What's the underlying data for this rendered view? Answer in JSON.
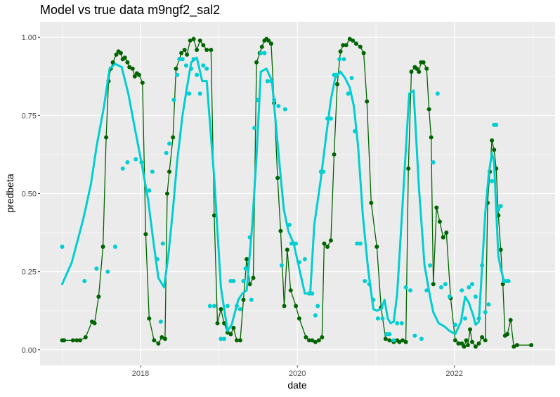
{
  "chart_data": {
    "type": "line",
    "title": "Model vs true data m9ngf2_sal2",
    "xlabel": "date",
    "ylabel": "predbeta",
    "x_ticks": [
      "2018",
      "2020",
      "2022"
    ],
    "y_ticks": [
      "0.00",
      "0.25",
      "0.50",
      "0.75",
      "1.00"
    ],
    "xlim": [
      "2016-09-20",
      "2023-04-15"
    ],
    "ylim": [
      -0.05,
      1.05
    ],
    "grid": true,
    "legend": "none",
    "colors": {
      "panel_background": "#ebebeb",
      "grid": "#ffffff",
      "true_series": "#006400",
      "model_series": "#00ced1"
    },
    "series": [
      {
        "role": "true",
        "style": "line+points",
        "x": [
          "2017-01-01",
          "2017-01-10",
          "2017-02-20",
          "2017-03-10",
          "2017-03-25",
          "2017-04-20",
          "2017-05-20",
          "2017-06-01",
          "2017-06-20",
          "2017-07-10",
          "2017-07-25",
          "2017-08-05",
          "2017-08-15",
          "2017-08-25",
          "2017-09-10",
          "2017-09-20",
          "2017-10-01",
          "2017-10-10",
          "2017-10-20",
          "2017-11-01",
          "2017-11-10",
          "2017-11-25",
          "2017-12-05",
          "2017-12-15",
          "2017-12-25",
          "2018-01-10",
          "2018-01-25",
          "2018-02-10",
          "2018-03-05",
          "2018-03-25",
          "2018-04-10",
          "2018-04-25",
          "2018-05-05",
          "2018-05-15",
          "2018-06-01",
          "2018-06-15",
          "2018-07-01",
          "2018-07-10",
          "2018-07-25",
          "2018-08-05",
          "2018-08-20",
          "2018-09-05",
          "2018-09-20",
          "2018-10-05",
          "2018-10-20",
          "2018-11-05",
          "2018-11-25",
          "2018-12-10",
          "2018-12-25",
          "2019-01-10",
          "2019-01-25",
          "2019-02-10",
          "2019-02-25",
          "2019-03-10",
          "2019-03-25",
          "2019-04-10",
          "2019-04-25",
          "2019-05-10",
          "2019-05-25",
          "2019-06-10",
          "2019-06-25",
          "2019-07-10",
          "2019-07-20",
          "2019-08-01",
          "2019-08-10",
          "2019-08-20",
          "2019-09-01",
          "2019-09-15",
          "2019-10-01",
          "2019-10-15",
          "2019-11-01",
          "2019-11-15",
          "2019-12-01",
          "2019-12-25",
          "2020-01-10",
          "2020-02-10",
          "2020-02-25",
          "2020-03-10",
          "2020-03-25",
          "2020-04-10",
          "2020-04-25",
          "2020-05-05",
          "2020-05-20",
          "2020-06-05",
          "2020-06-20",
          "2020-07-05",
          "2020-07-20",
          "2020-08-01",
          "2020-08-15",
          "2020-09-01",
          "2020-09-15",
          "2020-10-01",
          "2020-10-20",
          "2020-11-05",
          "2020-11-20",
          "2020-12-10",
          "2021-01-05",
          "2021-01-25",
          "2021-02-15",
          "2021-03-05",
          "2021-03-25",
          "2021-04-10",
          "2021-04-20",
          "2021-05-05",
          "2021-05-20",
          "2021-06-01",
          "2021-06-15",
          "2021-07-01",
          "2021-07-10",
          "2021-07-20",
          "2021-07-30",
          "2021-08-10",
          "2021-08-25",
          "2021-09-05",
          "2021-09-15",
          "2021-09-25",
          "2021-10-10",
          "2021-10-25",
          "2021-11-10",
          "2021-11-25",
          "2021-12-15",
          "2022-01-05",
          "2022-01-20",
          "2022-02-05",
          "2022-02-15",
          "2022-02-25",
          "2022-03-05",
          "2022-03-15",
          "2022-03-25",
          "2022-04-10",
          "2022-04-25",
          "2022-05-10",
          "2022-05-25",
          "2022-06-05",
          "2022-06-15",
          "2022-06-25",
          "2022-07-05",
          "2022-07-15",
          "2022-07-25",
          "2022-08-05",
          "2022-08-15",
          "2022-08-25",
          "2022-09-05",
          "2022-09-20",
          "2022-10-05",
          "2022-10-20",
          "2022-12-25"
        ],
        "y": [
          0.03,
          0.03,
          0.03,
          0.03,
          0.03,
          0.04,
          0.09,
          0.085,
          0.17,
          0.33,
          0.68,
          0.86,
          0.9,
          0.92,
          0.945,
          0.955,
          0.95,
          0.93,
          0.935,
          0.92,
          0.905,
          0.9,
          0.875,
          0.885,
          0.88,
          0.855,
          0.37,
          0.1,
          0.03,
          0.02,
          0.04,
          0.035,
          0.5,
          0.57,
          0.68,
          0.9,
          0.93,
          0.95,
          0.96,
          0.945,
          0.99,
          0.995,
          0.96,
          0.99,
          0.975,
          0.96,
          0.96,
          0.43,
          0.085,
          0.13,
          0.085,
          0.055,
          0.05,
          0.07,
          0.03,
          0.03,
          0.16,
          0.29,
          0.21,
          0.23,
          0.92,
          0.95,
          0.97,
          0.99,
          0.995,
          0.99,
          0.98,
          0.79,
          0.55,
          0.38,
          0.14,
          0.32,
          0.19,
          0.14,
          0.1,
          0.04,
          0.03,
          0.03,
          0.025,
          0.03,
          0.04,
          0.34,
          0.33,
          0.35,
          0.625,
          0.85,
          0.955,
          0.975,
          0.975,
          0.995,
          0.99,
          0.98,
          0.97,
          0.95,
          0.795,
          0.47,
          0.33,
          0.135,
          0.035,
          0.03,
          0.025,
          0.03,
          0.025,
          0.03,
          0.025,
          0.58,
          0.89,
          0.905,
          0.9,
          0.89,
          0.92,
          0.92,
          0.9,
          0.77,
          0.68,
          0.21,
          0.455,
          0.41,
          0.36,
          0.375,
          0.165,
          0.03,
          0.02,
          0.02,
          0.01,
          0.03,
          0.015,
          0.065,
          0.025,
          0.01,
          0.02,
          0.04,
          0.03,
          0.47,
          0.57,
          0.67,
          0.64,
          0.58,
          0.43,
          0.32,
          0.21,
          0.045,
          0.05,
          0.095,
          0.01,
          0.015,
          0.015
        ]
      },
      {
        "role": "model",
        "style": "line",
        "x": [
          "2017-01-01",
          "2017-02-15",
          "2017-03-10",
          "2017-04-10",
          "2017-05-15",
          "2017-06-10",
          "2017-07-15",
          "2017-08-10",
          "2017-09-05",
          "2017-10-05",
          "2017-11-05",
          "2017-12-05",
          "2018-01-05",
          "2018-02-05",
          "2018-03-01",
          "2018-03-25",
          "2018-04-20",
          "2018-05-10",
          "2018-06-01",
          "2018-06-20",
          "2018-07-15",
          "2018-08-05",
          "2018-08-25",
          "2018-09-20",
          "2018-10-15",
          "2018-11-05",
          "2018-12-10",
          "2019-01-10",
          "2019-02-10",
          "2019-03-01",
          "2019-04-01",
          "2019-04-20",
          "2019-05-10",
          "2019-06-05",
          "2019-06-25",
          "2019-07-15",
          "2019-08-10",
          "2019-09-05",
          "2019-10-05",
          "2019-10-30",
          "2019-11-20",
          "2019-12-15",
          "2020-01-10",
          "2020-02-05",
          "2020-03-01",
          "2020-03-20",
          "2020-04-20",
          "2020-05-15",
          "2020-06-05",
          "2020-06-25",
          "2020-07-20",
          "2020-08-10",
          "2020-09-01",
          "2020-09-20",
          "2020-10-10",
          "2020-11-01",
          "2020-11-25",
          "2020-12-20",
          "2021-01-05",
          "2021-01-25",
          "2021-02-10",
          "2021-02-25",
          "2021-03-10",
          "2021-03-25",
          "2021-04-10",
          "2021-04-25",
          "2021-05-15",
          "2021-06-05",
          "2021-06-25",
          "2021-07-20",
          "2021-08-15",
          "2021-09-10",
          "2021-09-25",
          "2021-10-20",
          "2021-11-15",
          "2021-12-10",
          "2022-01-05",
          "2022-02-01",
          "2022-02-20",
          "2022-03-10",
          "2022-03-30",
          "2022-04-10",
          "2022-04-25",
          "2022-05-15",
          "2022-05-25",
          "2022-06-10",
          "2022-06-25",
          "2022-07-05",
          "2022-07-15",
          "2022-07-25",
          "2022-08-05",
          "2022-08-20",
          "2022-09-05"
        ],
        "y": [
          0.21,
          0.28,
          0.34,
          0.42,
          0.53,
          0.65,
          0.78,
          0.9,
          0.915,
          0.905,
          0.82,
          0.71,
          0.6,
          0.48,
          0.35,
          0.23,
          0.2,
          0.3,
          0.45,
          0.6,
          0.75,
          0.84,
          0.92,
          0.935,
          0.86,
          0.86,
          0.55,
          0.2,
          0.06,
          0.08,
          0.16,
          0.18,
          0.19,
          0.4,
          0.62,
          0.89,
          0.9,
          0.86,
          0.63,
          0.45,
          0.38,
          0.34,
          0.26,
          0.18,
          0.18,
          0.4,
          0.55,
          0.69,
          0.8,
          0.87,
          0.89,
          0.87,
          0.84,
          0.78,
          0.65,
          0.43,
          0.26,
          0.13,
          0.125,
          0.13,
          0.16,
          0.1,
          0.085,
          0.09,
          0.18,
          0.35,
          0.58,
          0.82,
          0.83,
          0.52,
          0.27,
          0.17,
          0.12,
          0.085,
          0.075,
          0.06,
          0.05,
          0.09,
          0.17,
          0.15,
          0.11,
          0.08,
          0.09,
          0.32,
          0.44,
          0.56,
          0.63,
          0.6,
          0.45,
          0.3,
          0.26,
          0.22,
          0.22
        ]
      },
      {
        "role": "model",
        "style": "points",
        "x": [
          "2017-01-01",
          "2017-04-15",
          "2017-06-10",
          "2017-08-01",
          "2017-09-05",
          "2017-10-10",
          "2017-11-01",
          "2017-12-10",
          "2018-01-05",
          "2018-02-10",
          "2018-02-25",
          "2018-03-20",
          "2018-04-05",
          "2018-04-15",
          "2018-05-01",
          "2018-05-15",
          "2018-06-05",
          "2018-06-20",
          "2018-07-01",
          "2018-07-15",
          "2018-08-01",
          "2018-08-15",
          "2018-08-25",
          "2018-09-05",
          "2018-09-20",
          "2018-10-05",
          "2018-10-20",
          "2018-11-05",
          "2018-11-20",
          "2018-12-10",
          "2019-01-10",
          "2019-01-25",
          "2019-02-10",
          "2019-02-25",
          "2019-03-10",
          "2019-03-25",
          "2019-04-10",
          "2019-04-25",
          "2019-05-05",
          "2019-05-25",
          "2019-06-01",
          "2019-06-15",
          "2019-07-01",
          "2019-07-15",
          "2019-08-01",
          "2019-08-15",
          "2019-09-01",
          "2019-09-15",
          "2019-10-05",
          "2019-10-20",
          "2019-11-05",
          "2019-11-25",
          "2019-12-05",
          "2019-12-25",
          "2020-01-10",
          "2020-02-05",
          "2020-02-25",
          "2020-03-10",
          "2020-03-25",
          "2020-04-05",
          "2020-04-20",
          "2020-05-01",
          "2020-05-20",
          "2020-06-05",
          "2020-06-20",
          "2020-07-01",
          "2020-07-15",
          "2020-08-05",
          "2020-08-25",
          "2020-09-10",
          "2020-09-25",
          "2020-10-05",
          "2020-10-20",
          "2020-11-10",
          "2020-12-01",
          "2020-12-20",
          "2021-01-10",
          "2021-02-01",
          "2021-02-20",
          "2021-03-05",
          "2021-03-25",
          "2021-04-10",
          "2021-05-01",
          "2021-05-20",
          "2021-06-10",
          "2021-07-01",
          "2021-08-01",
          "2021-08-25",
          "2021-09-10",
          "2021-09-25",
          "2021-10-15",
          "2021-11-01",
          "2021-11-20",
          "2021-12-10",
          "2022-01-05",
          "2022-02-05",
          "2022-02-20",
          "2022-03-10",
          "2022-03-25",
          "2022-04-10",
          "2022-04-25",
          "2022-05-10",
          "2022-05-25",
          "2022-06-10",
          "2022-06-25",
          "2022-07-05",
          "2022-07-15",
          "2022-07-25",
          "2022-08-05",
          "2022-08-20",
          "2022-09-01",
          "2022-09-10"
        ],
        "y": [
          0.33,
          0.22,
          0.26,
          0.25,
          0.33,
          0.58,
          0.6,
          0.61,
          0.6,
          0.51,
          0.57,
          0.29,
          0.09,
          0.34,
          0.63,
          0.66,
          0.8,
          0.88,
          0.93,
          0.93,
          0.91,
          0.82,
          0.9,
          0.93,
          0.88,
          0.82,
          0.91,
          0.9,
          0.14,
          0.14,
          0.035,
          0.035,
          0.14,
          0.22,
          0.22,
          0.14,
          0.13,
          0.22,
          0.26,
          0.36,
          0.16,
          0.71,
          0.8,
          0.95,
          0.95,
          0.86,
          0.86,
          0.8,
          0.78,
          0.27,
          0.77,
          0.4,
          0.34,
          0.34,
          0.28,
          0.29,
          0.18,
          0.18,
          0.11,
          0.14,
          0.57,
          0.57,
          0.74,
          0.74,
          0.88,
          0.88,
          0.93,
          0.93,
          0.82,
          0.87,
          0.7,
          0.34,
          0.34,
          0.22,
          0.21,
          0.16,
          0.1,
          0.1,
          0.05,
          0.05,
          0.03,
          0.085,
          0.085,
          0.2,
          0.19,
          0.045,
          0.035,
          0.19,
          0.27,
          0.6,
          0.82,
          0.2,
          0.21,
          0.17,
          0.08,
          0.19,
          0.1,
          0.2,
          0.21,
          0.17,
          0.1,
          0.27,
          0.12,
          0.145,
          0.54,
          0.72,
          0.72,
          0.45,
          0.46,
          0.22,
          0.22,
          0.22
        ]
      }
    ]
  }
}
